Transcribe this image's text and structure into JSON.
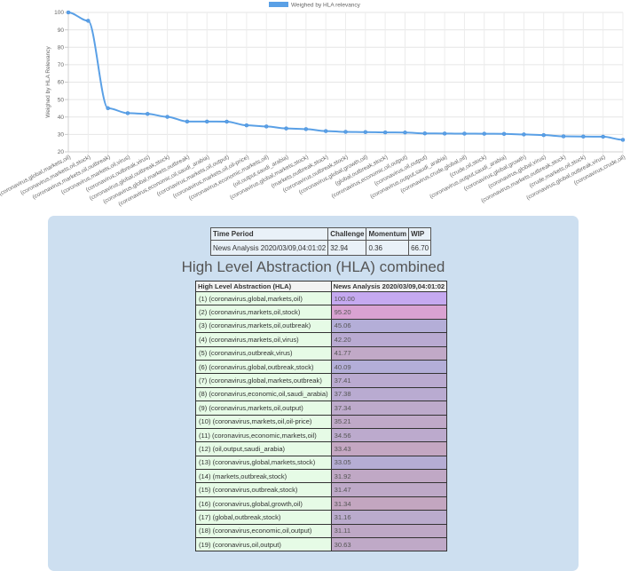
{
  "chart_data": {
    "type": "line",
    "legend": {
      "label": "Weighed by HLA relevancy",
      "placement": "top-center"
    },
    "ylabel": "Weighed by HLA Relevancy",
    "xlabel": "",
    "ylim": [
      20,
      100
    ],
    "yticks": [
      20,
      30,
      40,
      50,
      60,
      70,
      80,
      90,
      100
    ],
    "grid": true,
    "categories": [
      "(coronavirus,global,markets,oil)",
      "(coronavirus,markets,oil,stock)",
      "(coronavirus,markets,oil,outbreak)",
      "(coronavirus,markets,oil,virus)",
      "(coronavirus,outbreak,virus)",
      "(coronavirus,global,outbreak,stock)",
      "(coronavirus,global,markets,outbreak)",
      "(coronavirus,economic,oil,saudi_arabia)",
      "(coronavirus,markets,oil,output)",
      "(coronavirus,markets,oil,oil-price)",
      "(coronavirus,economic,markets,oil)",
      "(oil,output,saudi_arabia)",
      "(coronavirus,global,markets,stock)",
      "(markets,outbreak,stock)",
      "(coronavirus,outbreak,stock)",
      "(coronavirus,global,growth,oil)",
      "(global,outbreak,stock)",
      "(coronavirus,economic,oil,output)",
      "(coronavirus,oil,output)",
      "(coronavirus,output,saudi_arabia)",
      "(coronavirus,crude,global,oil)",
      "(crude,oil,stock)",
      "(coronavirus,output,saudi_arabia)",
      "(coronavirus,global,growth)",
      "(coronavirus,global,virus)",
      "(coronavirus,markets,outbreak,stock)",
      "(crude,markets,oil,stock)",
      "(coronavirus,global,outbreak,virus)",
      "(coronavirus,crude,oil)"
    ],
    "values": [
      100.0,
      95.2,
      45.06,
      42.2,
      41.77,
      40.09,
      37.41,
      37.38,
      37.34,
      35.21,
      34.56,
      33.43,
      33.05,
      31.92,
      31.47,
      31.34,
      31.16,
      31.11,
      30.6,
      30.5,
      30.45,
      30.4,
      30.3,
      30.0,
      29.6,
      28.9,
      28.8,
      28.7,
      26.9
    ]
  },
  "summary": {
    "headers": [
      "Time Period",
      "Challenge",
      "Momentum",
      "WIP"
    ],
    "row": [
      "News Analysis 2020/03/09,04:01:02",
      "32.94",
      "0.36",
      "66.70"
    ]
  },
  "hla": {
    "title": "High Level Abstraction (HLA) combined",
    "col1_header": "High Level Abstraction (HLA)",
    "col2_header": "News Analysis 2020/03/09,04:01:02",
    "rows": [
      {
        "label": "(1) (coronavirus,global,markets,oil)",
        "value": "100.00",
        "color": "#c5a9f0"
      },
      {
        "label": "(2) (coronavirus,markets,oil,stock)",
        "value": "95.20",
        "color": "#d9a2d2"
      },
      {
        "label": "(3) (coronavirus,markets,oil,outbreak)",
        "value": "45.06",
        "color": "#b4aed8"
      },
      {
        "label": "(4) (coronavirus,markets,oil,virus)",
        "value": "42.20",
        "color": "#b9aad2"
      },
      {
        "label": "(5) (coronavirus,outbreak,virus)",
        "value": "41.77",
        "color": "#c1a9c7"
      },
      {
        "label": "(6) (coronavirus,global,outbreak,stock)",
        "value": "40.09",
        "color": "#b3aed8"
      },
      {
        "label": "(7) (coronavirus,global,markets,outbreak)",
        "value": "37.41",
        "color": "#baaad0"
      },
      {
        "label": "(8) (coronavirus,economic,oil,saudi_arabia)",
        "value": "37.38",
        "color": "#b9abd1"
      },
      {
        "label": "(9) (coronavirus,markets,oil,output)",
        "value": "37.34",
        "color": "#bdaacb"
      },
      {
        "label": "(10) (coronavirus,markets,oil,oil-price)",
        "value": "35.21",
        "color": "#c0a9c8"
      },
      {
        "label": "(11) (coronavirus,economic,markets,oil)",
        "value": "34.56",
        "color": "#bcaacd"
      },
      {
        "label": "(12) (oil,output,saudi_arabia)",
        "value": "33.43",
        "color": "#c4a7c2"
      },
      {
        "label": "(13) (coronavirus,global,markets,stock)",
        "value": "33.05",
        "color": "#b5add4"
      },
      {
        "label": "(14) (markets,outbreak,stock)",
        "value": "31.92",
        "color": "#c0a8c5"
      },
      {
        "label": "(15) (coronavirus,outbreak,stock)",
        "value": "31.47",
        "color": "#bea9c8"
      },
      {
        "label": "(16) (coronavirus,global,growth,oil)",
        "value": "31.34",
        "color": "#c3a6c0"
      },
      {
        "label": "(17) (global,outbreak,stock)",
        "value": "31.16",
        "color": "#baabcd"
      },
      {
        "label": "(18) (coronavirus,economic,oil,output)",
        "value": "31.11",
        "color": "#bea8c6"
      },
      {
        "label": "(19) (coronavirus,oil,output)",
        "value": "30.63",
        "color": "#bfa9c7"
      }
    ]
  }
}
